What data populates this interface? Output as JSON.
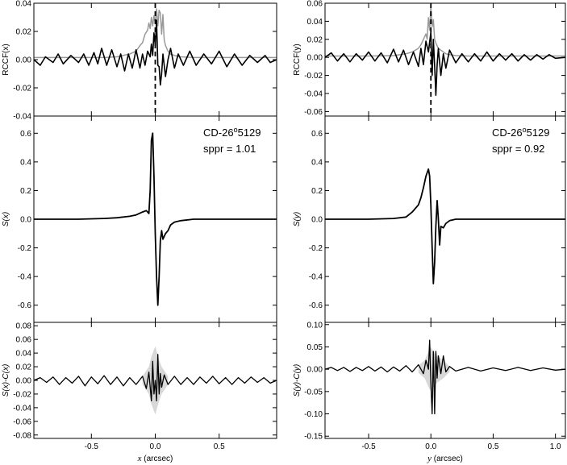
{
  "figure": {
    "background": "#ffffff",
    "line_color": "#000000",
    "gray_color": "#999999",
    "band_color": "#d8d8d8"
  },
  "chart_data": [
    {
      "id": "rccf_x",
      "type": "line",
      "xlabel": "",
      "ylabel": "RCCF(x)",
      "xlim": [
        -0.95,
        0.95
      ],
      "ylim": [
        -0.04,
        0.04
      ],
      "xticks": [
        -0.5,
        0,
        0.5
      ],
      "xtick_labels": [],
      "yticks": [
        -0.04,
        -0.02,
        0,
        0.02,
        0.04
      ],
      "ytick_labels": [
        "-0.04",
        "-0.02",
        "0.00",
        "0.02",
        "0.04"
      ],
      "vline": 0,
      "annotation": null,
      "series": [
        {
          "color": "#999999",
          "width": 1.5,
          "x": [
            -0.95,
            -0.6,
            -0.4,
            -0.3,
            -0.2,
            -0.15,
            -0.12,
            -0.1,
            -0.08,
            -0.06,
            -0.05,
            -0.04,
            -0.03,
            -0.02,
            -0.01,
            0.0,
            0.01,
            0.02,
            0.03,
            0.04,
            0.05,
            0.06,
            0.07,
            0.08,
            0.1,
            0.12,
            0.15,
            0.2,
            0.3,
            0.5,
            0.95
          ],
          "y": [
            0.0015,
            0.0015,
            0.0015,
            0.002,
            0.004,
            0.006,
            0.01,
            0.012,
            0.018,
            0.021,
            0.026,
            0.022,
            0.03,
            0.024,
            0.031,
            0.026,
            0.036,
            0.024,
            0.035,
            0.033,
            0.018,
            0.032,
            0.014,
            0.01,
            0.006,
            0.004,
            0.003,
            0.002,
            0.0015,
            0.0015,
            0.0015
          ]
        },
        {
          "color": "#000000",
          "width": 1.6,
          "x": [
            -0.95,
            -0.9,
            -0.86,
            -0.8,
            -0.76,
            -0.72,
            -0.66,
            -0.6,
            -0.56,
            -0.52,
            -0.48,
            -0.45,
            -0.42,
            -0.38,
            -0.34,
            -0.3,
            -0.27,
            -0.24,
            -0.21,
            -0.18,
            -0.15,
            -0.12,
            -0.1,
            -0.08,
            -0.06,
            -0.04,
            -0.03,
            -0.02,
            -0.01,
            0.0,
            0.01,
            0.02,
            0.03,
            0.04,
            0.05,
            0.06,
            0.08,
            0.1,
            0.12,
            0.15,
            0.18,
            0.22,
            0.27,
            0.32,
            0.38,
            0.44,
            0.5,
            0.56,
            0.62,
            0.68,
            0.74,
            0.8,
            0.86,
            0.9,
            0.95
          ],
          "y": [
            0.0,
            -0.004,
            0.002,
            -0.002,
            0.004,
            -0.003,
            0.003,
            -0.002,
            0.004,
            -0.004,
            0.005,
            -0.003,
            0.008,
            -0.004,
            0.007,
            -0.005,
            0.004,
            -0.008,
            0.004,
            -0.006,
            0.007,
            -0.006,
            0.004,
            -0.004,
            0.006,
            0.002,
            0.011,
            0.003,
            0.019,
            0.01,
            0.028,
            -0.004,
            -0.005,
            -0.018,
            -0.01,
            0.004,
            -0.012,
            0.0,
            0.008,
            -0.006,
            0.004,
            -0.004,
            0.006,
            -0.004,
            0.004,
            -0.003,
            0.006,
            -0.005,
            0.004,
            -0.004,
            0.003,
            -0.002,
            0.003,
            -0.002,
            0.0
          ]
        }
      ]
    },
    {
      "id": "rccf_y",
      "type": "line",
      "xlabel": "",
      "ylabel": "RCCF(y)",
      "xlim": [
        -0.85,
        1.08
      ],
      "ylim": [
        -0.065,
        0.06
      ],
      "xticks": [
        -0.5,
        0,
        0.5,
        1.0
      ],
      "xtick_labels": [],
      "yticks": [
        -0.06,
        -0.04,
        -0.02,
        0,
        0.02,
        0.04,
        0.06
      ],
      "ytick_labels": [
        "-0.06",
        "-0.04",
        "-0.02",
        "0.00",
        "0.02",
        "0.04",
        "0.06"
      ],
      "vline": 0,
      "annotation": null,
      "series": [
        {
          "color": "#999999",
          "width": 1.5,
          "x": [
            -0.85,
            -0.5,
            -0.3,
            -0.2,
            -0.15,
            -0.1,
            -0.08,
            -0.06,
            -0.04,
            -0.03,
            -0.02,
            -0.01,
            0.0,
            0.01,
            0.02,
            0.03,
            0.04,
            0.06,
            0.08,
            0.1,
            0.12,
            0.15,
            0.2,
            0.3,
            0.5,
            1.08
          ],
          "y": [
            0.0015,
            0.0015,
            0.002,
            0.004,
            0.006,
            0.01,
            0.014,
            0.02,
            0.026,
            0.02,
            0.044,
            0.03,
            0.057,
            0.034,
            0.042,
            0.02,
            0.016,
            0.01,
            0.008,
            0.006,
            0.004,
            0.003,
            0.002,
            0.0015,
            0.0015,
            0.0015
          ]
        },
        {
          "color": "#000000",
          "width": 1.6,
          "x": [
            -0.85,
            -0.8,
            -0.75,
            -0.7,
            -0.65,
            -0.6,
            -0.55,
            -0.5,
            -0.45,
            -0.4,
            -0.35,
            -0.3,
            -0.26,
            -0.22,
            -0.18,
            -0.14,
            -0.1,
            -0.08,
            -0.06,
            -0.04,
            -0.02,
            0.0,
            0.01,
            0.02,
            0.03,
            0.04,
            0.05,
            0.06,
            0.08,
            0.1,
            0.12,
            0.15,
            0.2,
            0.25,
            0.3,
            0.35,
            0.4,
            0.45,
            0.5,
            0.55,
            0.6,
            0.65,
            0.7,
            0.75,
            0.8,
            0.85,
            0.9,
            0.95,
            1.0,
            1.08
          ],
          "y": [
            0.0,
            0.005,
            -0.004,
            0.004,
            -0.005,
            0.004,
            -0.003,
            0.006,
            -0.004,
            0.005,
            -0.006,
            0.009,
            -0.005,
            0.008,
            -0.008,
            0.006,
            -0.01,
            0.01,
            -0.008,
            0.018,
            0.006,
            0.028,
            -0.02,
            0.02,
            -0.01,
            -0.042,
            -0.008,
            0.01,
            -0.02,
            0.004,
            -0.012,
            0.008,
            -0.006,
            0.004,
            -0.005,
            0.004,
            -0.004,
            0.006,
            -0.004,
            0.004,
            -0.003,
            0.004,
            -0.004,
            0.003,
            -0.003,
            0.003,
            -0.002,
            0.003,
            -0.001,
            0.0
          ]
        }
      ]
    },
    {
      "id": "s_x",
      "type": "line",
      "xlabel": "",
      "ylabel": "S(x)",
      "xlim": [
        -0.95,
        0.95
      ],
      "ylim": [
        -0.72,
        0.72
      ],
      "xticks": [
        -0.5,
        0,
        0.5
      ],
      "xtick_labels": [],
      "yticks": [
        -0.6,
        -0.4,
        -0.2,
        0,
        0.2,
        0.4,
        0.6
      ],
      "ytick_labels": [
        "-0.6",
        "-0.4",
        "-0.2",
        "0.0",
        "0.2",
        "0.4",
        "0.6"
      ],
      "vline": null,
      "annotation": {
        "star": "CD-26",
        "sup": "o",
        "star_end": "5129",
        "sppr": "sppr = 1.01"
      },
      "series": [
        {
          "color": "#000000",
          "width": 1.8,
          "x": [
            -0.95,
            -0.6,
            -0.4,
            -0.3,
            -0.2,
            -0.15,
            -0.1,
            -0.07,
            -0.05,
            -0.04,
            -0.03,
            -0.02,
            -0.01,
            0.0,
            0.01,
            0.02,
            0.03,
            0.04,
            0.05,
            0.06,
            0.08,
            0.1,
            0.12,
            0.15,
            0.2,
            0.3,
            0.5,
            0.95
          ],
          "y": [
            0.0,
            0.0,
            0.005,
            0.01,
            0.02,
            0.03,
            0.05,
            0.06,
            0.04,
            0.2,
            0.55,
            0.6,
            0.3,
            -0.1,
            -0.4,
            -0.6,
            -0.4,
            -0.15,
            -0.08,
            -0.14,
            -0.1,
            -0.08,
            -0.04,
            -0.02,
            -0.01,
            0.0,
            0.0,
            0.0
          ]
        }
      ]
    },
    {
      "id": "s_y",
      "type": "line",
      "xlabel": "",
      "ylabel": "S(y)",
      "xlim": [
        -0.85,
        1.08
      ],
      "ylim": [
        -0.72,
        0.72
      ],
      "xticks": [
        -0.5,
        0,
        0.5,
        1.0
      ],
      "xtick_labels": [],
      "yticks": [
        -0.6,
        -0.4,
        -0.2,
        0,
        0.2,
        0.4,
        0.6
      ],
      "ytick_labels": [
        "-0.6",
        "-0.4",
        "-0.2",
        "0.0",
        "0.2",
        "0.4",
        "0.6"
      ],
      "vline": null,
      "annotation": {
        "star": "CD-26",
        "sup": "o",
        "star_end": "5129",
        "sppr": "sppr = 0.92"
      },
      "series": [
        {
          "color": "#000000",
          "width": 1.8,
          "x": [
            -0.85,
            -0.5,
            -0.3,
            -0.2,
            -0.15,
            -0.1,
            -0.08,
            -0.06,
            -0.04,
            -0.02,
            -0.01,
            0.0,
            0.01,
            0.02,
            0.03,
            0.04,
            0.05,
            0.06,
            0.07,
            0.08,
            0.1,
            0.12,
            0.15,
            0.2,
            0.3,
            0.5,
            1.08
          ],
          "y": [
            0.0,
            0.0,
            0.005,
            0.015,
            0.05,
            0.1,
            0.15,
            0.22,
            0.3,
            0.35,
            0.3,
            0.1,
            -0.2,
            -0.45,
            -0.3,
            -0.05,
            0.13,
            0.0,
            -0.18,
            -0.05,
            -0.06,
            -0.03,
            -0.01,
            0.0,
            0.0,
            0.0,
            0.0
          ]
        }
      ]
    },
    {
      "id": "resid_x",
      "type": "line",
      "xlabel": "x (arcsec)",
      "ylabel": "S(x)-C(x)",
      "xlim": [
        -0.95,
        0.95
      ],
      "ylim": [
        -0.085,
        0.085
      ],
      "xticks": [
        -0.5,
        0,
        0.5
      ],
      "xtick_labels": [
        "-0.5",
        "0.0",
        "0.5"
      ],
      "yticks": [
        -0.08,
        -0.06,
        -0.04,
        -0.02,
        0,
        0.02,
        0.04,
        0.06,
        0.08
      ],
      "ytick_labels": [
        "-0.08",
        "-0.06",
        "-0.04",
        "-0.02",
        "0.00",
        "0.02",
        "0.04",
        "0.06",
        "0.08"
      ],
      "vline": null,
      "annotation": null,
      "band": {
        "x": [
          -0.1,
          -0.05,
          -0.03,
          0.0,
          0.03,
          0.05,
          0.1
        ],
        "upper": [
          0.006,
          0.02,
          0.035,
          0.05,
          0.03,
          0.02,
          0.006
        ],
        "lower": [
          -0.006,
          -0.02,
          -0.035,
          -0.05,
          -0.03,
          -0.02,
          -0.006
        ]
      },
      "series": [
        {
          "color": "#000000",
          "width": 1.3,
          "x": [
            -0.95,
            -0.9,
            -0.85,
            -0.8,
            -0.75,
            -0.7,
            -0.65,
            -0.6,
            -0.55,
            -0.5,
            -0.45,
            -0.4,
            -0.35,
            -0.3,
            -0.25,
            -0.2,
            -0.15,
            -0.1,
            -0.07,
            -0.05,
            -0.03,
            -0.02,
            -0.01,
            0.0,
            0.01,
            0.02,
            0.03,
            0.04,
            0.05,
            0.07,
            0.1,
            0.15,
            0.2,
            0.25,
            0.3,
            0.35,
            0.4,
            0.45,
            0.5,
            0.55,
            0.6,
            0.65,
            0.7,
            0.75,
            0.8,
            0.85,
            0.9,
            0.95
          ],
          "y": [
            0.0,
            0.004,
            -0.003,
            0.005,
            -0.006,
            0.004,
            -0.004,
            0.006,
            -0.008,
            0.005,
            -0.005,
            0.007,
            -0.006,
            0.005,
            -0.008,
            0.004,
            -0.006,
            0.006,
            -0.012,
            0.012,
            -0.03,
            0.028,
            -0.02,
            0.0,
            -0.03,
            0.038,
            -0.02,
            0.01,
            -0.01,
            0.008,
            -0.006,
            0.006,
            -0.006,
            0.004,
            -0.006,
            0.005,
            -0.004,
            0.006,
            -0.005,
            0.004,
            -0.006,
            0.004,
            -0.004,
            0.005,
            -0.003,
            0.004,
            -0.004,
            0.0
          ]
        }
      ]
    },
    {
      "id": "resid_y",
      "type": "line",
      "xlabel": "y (arcsec)",
      "ylabel": "S(y)-C(y)",
      "xlim": [
        -0.85,
        1.08
      ],
      "ylim": [
        -0.155,
        0.105
      ],
      "xticks": [
        -0.5,
        0,
        0.5,
        1.0
      ],
      "xtick_labels": [
        "-0.5",
        "0.0",
        "0.5",
        "1.0"
      ],
      "yticks": [
        -0.15,
        -0.1,
        -0.05,
        0,
        0.05,
        0.1
      ],
      "ytick_labels": [
        "-0.15",
        "-0.10",
        "-0.05",
        "0.00",
        "0.05",
        "0.10"
      ],
      "vline": null,
      "annotation": null,
      "band": {
        "x": [
          -0.1,
          -0.05,
          -0.02,
          0.0,
          0.02,
          0.05,
          0.1,
          0.15
        ],
        "upper": [
          0.008,
          0.02,
          0.04,
          0.05,
          0.04,
          0.03,
          0.02,
          0.006
        ],
        "lower": [
          -0.008,
          -0.02,
          -0.04,
          -0.05,
          -0.04,
          -0.03,
          -0.02,
          -0.006
        ]
      },
      "series": [
        {
          "color": "#000000",
          "width": 1.3,
          "x": [
            -0.85,
            -0.8,
            -0.75,
            -0.7,
            -0.65,
            -0.6,
            -0.55,
            -0.5,
            -0.45,
            -0.4,
            -0.35,
            -0.3,
            -0.25,
            -0.2,
            -0.15,
            -0.1,
            -0.06,
            -0.04,
            -0.02,
            -0.01,
            0.0,
            0.01,
            0.02,
            0.03,
            0.04,
            0.05,
            0.06,
            0.08,
            0.1,
            0.12,
            0.15,
            0.2,
            0.3,
            0.4,
            0.5,
            0.6,
            0.7,
            0.8,
            0.9,
            1.0,
            1.08
          ],
          "y": [
            0.0,
            0.004,
            -0.003,
            0.004,
            -0.005,
            0.004,
            -0.003,
            0.006,
            -0.004,
            0.005,
            -0.006,
            0.005,
            -0.004,
            0.008,
            -0.006,
            0.01,
            -0.01,
            0.02,
            0.0,
            0.065,
            -0.03,
            -0.1,
            0.04,
            -0.1,
            0.04,
            -0.02,
            0.03,
            -0.01,
            0.03,
            -0.006,
            0.006,
            -0.004,
            0.004,
            -0.004,
            0.003,
            -0.003,
            0.004,
            -0.003,
            0.003,
            -0.002,
            0.0
          ]
        }
      ]
    }
  ]
}
